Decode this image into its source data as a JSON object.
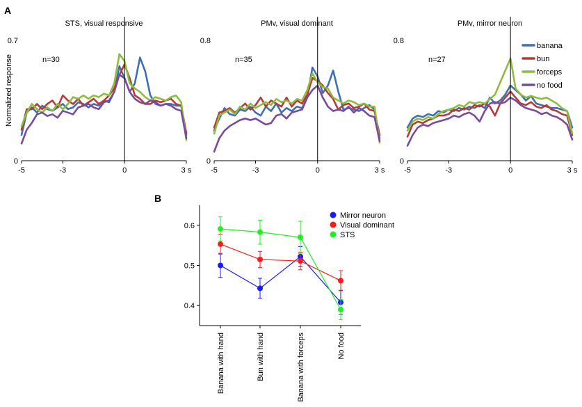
{
  "panel_labels": {
    "a": "A",
    "b": "B"
  },
  "chart_data": [
    {
      "type": "line",
      "title": "STS, visual responsive",
      "ylabel": "Normalized response",
      "n_label": "n=30",
      "x_ticks": [
        "-5",
        "-3",
        "0",
        "3 s"
      ],
      "x_tick_values": [
        -5,
        -3,
        0,
        3
      ],
      "y_ticks": [
        "0",
        "0.7"
      ],
      "y_tick_values": [
        0,
        0.7
      ],
      "xlim": [
        -5,
        3
      ],
      "ylim": [
        0,
        0.7
      ],
      "x": [
        -5,
        -4.75,
        -4.5,
        -4.25,
        -4,
        -3.75,
        -3.5,
        -3.25,
        -3,
        -2.75,
        -2.5,
        -2.25,
        -2,
        -1.75,
        -1.5,
        -1.25,
        -1,
        -0.75,
        -0.5,
        -0.25,
        0,
        0.25,
        0.5,
        0.75,
        1,
        1.25,
        1.5,
        1.75,
        2,
        2.25,
        2.5,
        2.75,
        3
      ],
      "series": [
        {
          "name": "banana",
          "values": [
            0.15,
            0.28,
            0.31,
            0.28,
            0.32,
            0.3,
            0.29,
            0.31,
            0.33,
            0.3,
            0.31,
            0.34,
            0.33,
            0.31,
            0.33,
            0.32,
            0.35,
            0.34,
            0.4,
            0.55,
            0.48,
            0.4,
            0.45,
            0.6,
            0.52,
            0.38,
            0.33,
            0.32,
            0.33,
            0.33,
            0.32,
            0.32,
            0.15
          ]
        },
        {
          "name": "bun",
          "values": [
            0.18,
            0.3,
            0.3,
            0.33,
            0.3,
            0.33,
            0.35,
            0.31,
            0.38,
            0.35,
            0.33,
            0.36,
            0.32,
            0.34,
            0.36,
            0.33,
            0.35,
            0.38,
            0.42,
            0.5,
            0.56,
            0.48,
            0.38,
            0.36,
            0.33,
            0.33,
            0.35,
            0.34,
            0.35,
            0.36,
            0.33,
            0.32,
            0.16
          ]
        },
        {
          "name": "forceps",
          "values": [
            0.2,
            0.28,
            0.33,
            0.3,
            0.28,
            0.31,
            0.29,
            0.33,
            0.3,
            0.33,
            0.37,
            0.36,
            0.38,
            0.36,
            0.38,
            0.37,
            0.39,
            0.38,
            0.45,
            0.62,
            0.58,
            0.45,
            0.42,
            0.4,
            0.37,
            0.35,
            0.37,
            0.36,
            0.35,
            0.37,
            0.38,
            0.34,
            0.12
          ]
        },
        {
          "name": "no food",
          "values": [
            0.1,
            0.18,
            0.22,
            0.27,
            0.28,
            0.26,
            0.27,
            0.25,
            0.29,
            0.28,
            0.27,
            0.31,
            0.32,
            0.33,
            0.31,
            0.3,
            0.34,
            0.35,
            0.4,
            0.5,
            0.48,
            0.4,
            0.36,
            0.34,
            0.33,
            0.35,
            0.34,
            0.32,
            0.33,
            0.32,
            0.3,
            0.29,
            0.13
          ]
        }
      ]
    },
    {
      "type": "line",
      "title": "PMv, visual dominant",
      "n_label": "n=35",
      "x_ticks": [
        "-5",
        "-3",
        "0",
        "3 s"
      ],
      "x_tick_values": [
        -5,
        -3,
        0,
        3
      ],
      "y_ticks": [
        "0",
        "0.8"
      ],
      "y_tick_values": [
        0,
        0.8
      ],
      "xlim": [
        -5,
        3
      ],
      "ylim": [
        0,
        0.8
      ],
      "x": [
        -5,
        -4.75,
        -4.5,
        -4.25,
        -4,
        -3.75,
        -3.5,
        -3.25,
        -3,
        -2.75,
        -2.5,
        -2.25,
        -2,
        -1.75,
        -1.5,
        -1.25,
        -1,
        -0.75,
        -0.5,
        -0.25,
        0,
        0.25,
        0.5,
        0.75,
        1,
        1.25,
        1.5,
        1.75,
        2,
        2.25,
        2.5,
        2.75,
        3
      ],
      "series": [
        {
          "name": "banana",
          "values": [
            0.2,
            0.28,
            0.35,
            0.31,
            0.3,
            0.34,
            0.33,
            0.36,
            0.32,
            0.3,
            0.36,
            0.33,
            0.38,
            0.32,
            0.35,
            0.33,
            0.36,
            0.35,
            0.42,
            0.62,
            0.56,
            0.45,
            0.5,
            0.6,
            0.46,
            0.34,
            0.35,
            0.34,
            0.33,
            0.35,
            0.37,
            0.34,
            0.15
          ]
        },
        {
          "name": "bun",
          "values": [
            0.22,
            0.32,
            0.33,
            0.35,
            0.32,
            0.35,
            0.38,
            0.34,
            0.37,
            0.42,
            0.36,
            0.4,
            0.38,
            0.36,
            0.42,
            0.36,
            0.4,
            0.38,
            0.44,
            0.55,
            0.53,
            0.5,
            0.45,
            0.41,
            0.34,
            0.37,
            0.38,
            0.35,
            0.36,
            0.38,
            0.34,
            0.33,
            0.17
          ]
        },
        {
          "name": "forceps",
          "values": [
            0.18,
            0.3,
            0.32,
            0.34,
            0.31,
            0.36,
            0.34,
            0.38,
            0.35,
            0.37,
            0.39,
            0.37,
            0.41,
            0.39,
            0.4,
            0.38,
            0.41,
            0.4,
            0.47,
            0.58,
            0.52,
            0.49,
            0.48,
            0.42,
            0.4,
            0.38,
            0.4,
            0.39,
            0.37,
            0.38,
            0.36,
            0.36,
            0.12
          ]
        },
        {
          "name": "no food",
          "values": [
            0.06,
            0.15,
            0.2,
            0.23,
            0.25,
            0.27,
            0.28,
            0.27,
            0.28,
            0.26,
            0.24,
            0.25,
            0.3,
            0.31,
            0.28,
            0.32,
            0.33,
            0.34,
            0.42,
            0.47,
            0.5,
            0.42,
            0.36,
            0.33,
            0.34,
            0.33,
            0.36,
            0.32,
            0.35,
            0.33,
            0.3,
            0.29,
            0.13
          ]
        }
      ]
    },
    {
      "type": "line",
      "title": "PMv, mirror neuron",
      "n_label": "n=27",
      "x_ticks": [
        "-5",
        "-3",
        "0",
        "3 s"
      ],
      "x_tick_values": [
        -5,
        -3,
        0,
        3
      ],
      "y_ticks": [
        "0",
        "0.8"
      ],
      "y_tick_values": [
        0,
        0.8
      ],
      "xlim": [
        -5,
        3
      ],
      "ylim": [
        0,
        0.8
      ],
      "legend": [
        "banana",
        "bun",
        "forceps",
        "no food"
      ],
      "x": [
        -5,
        -4.75,
        -4.5,
        -4.25,
        -4,
        -3.75,
        -3.5,
        -3.25,
        -3,
        -2.75,
        -2.5,
        -2.25,
        -2,
        -1.75,
        -1.5,
        -1.25,
        -1,
        -0.75,
        -0.5,
        -0.25,
        0,
        0.25,
        0.5,
        0.75,
        1,
        1.25,
        1.5,
        1.75,
        2,
        2.25,
        2.5,
        2.75,
        3
      ],
      "series": [
        {
          "name": "banana",
          "values": [
            0.22,
            0.28,
            0.3,
            0.29,
            0.31,
            0.3,
            0.33,
            0.32,
            0.34,
            0.33,
            0.35,
            0.34,
            0.36,
            0.35,
            0.37,
            0.35,
            0.42,
            0.38,
            0.4,
            0.44,
            0.5,
            0.47,
            0.44,
            0.4,
            0.43,
            0.38,
            0.37,
            0.36,
            0.35,
            0.35,
            0.34,
            0.33,
            0.22
          ]
        },
        {
          "name": "bun",
          "values": [
            0.16,
            0.24,
            0.26,
            0.25,
            0.27,
            0.28,
            0.3,
            0.3,
            0.31,
            0.34,
            0.33,
            0.35,
            0.34,
            0.37,
            0.36,
            0.38,
            0.36,
            0.3,
            0.38,
            0.42,
            0.46,
            0.42,
            0.38,
            0.37,
            0.39,
            0.36,
            0.35,
            0.37,
            0.34,
            0.33,
            0.31,
            0.3,
            0.17
          ]
        },
        {
          "name": "forceps",
          "values": [
            0.2,
            0.26,
            0.28,
            0.27,
            0.29,
            0.28,
            0.31,
            0.33,
            0.34,
            0.35,
            0.37,
            0.36,
            0.39,
            0.38,
            0.39,
            0.38,
            0.41,
            0.44,
            0.52,
            0.6,
            0.68,
            0.48,
            0.44,
            0.42,
            0.43,
            0.42,
            0.41,
            0.42,
            0.4,
            0.38,
            0.35,
            0.33,
            0.18
          ]
        },
        {
          "name": "no food",
          "values": [
            0.1,
            0.17,
            0.22,
            0.24,
            0.23,
            0.25,
            0.26,
            0.27,
            0.28,
            0.3,
            0.29,
            0.31,
            0.32,
            0.3,
            0.26,
            0.33,
            0.38,
            0.39,
            0.38,
            0.39,
            0.42,
            0.4,
            0.37,
            0.35,
            0.34,
            0.33,
            0.31,
            0.32,
            0.3,
            0.29,
            0.27,
            0.24,
            0.14
          ]
        }
      ]
    },
    {
      "type": "line",
      "categories": [
        "Banana with hand",
        "Bun with hand",
        "Banana with forceps",
        "No food"
      ],
      "y_ticks": [
        "0.4",
        "0.5",
        "0.6"
      ],
      "y_tick_values": [
        0.4,
        0.5,
        0.6
      ],
      "ylim": [
        0.35,
        0.65
      ],
      "error_bars": true,
      "legend_position": "top-right",
      "series": [
        {
          "name": "Mirror neuron",
          "values": [
            0.5,
            0.443,
            0.522,
            0.408
          ],
          "errors": [
            0.03,
            0.025,
            0.025,
            0.03
          ]
        },
        {
          "name": "Visual dominant",
          "values": [
            0.553,
            0.515,
            0.511,
            0.462
          ],
          "errors": [
            0.025,
            0.02,
            0.022,
            0.025
          ]
        },
        {
          "name": "STS",
          "values": [
            0.591,
            0.583,
            0.57,
            0.39
          ],
          "errors": [
            0.03,
            0.03,
            0.04,
            0.025
          ]
        }
      ]
    }
  ],
  "colors": {
    "banana": "#3e6fb4",
    "bun": "#b83a35",
    "forceps": "#8cbd3f",
    "no food": "#7a4a9c",
    "Mirror neuron": "#1a1aff",
    "Visual dominant": "#ff1a1a",
    "STS": "#22ee22",
    "axis": "#000000"
  }
}
